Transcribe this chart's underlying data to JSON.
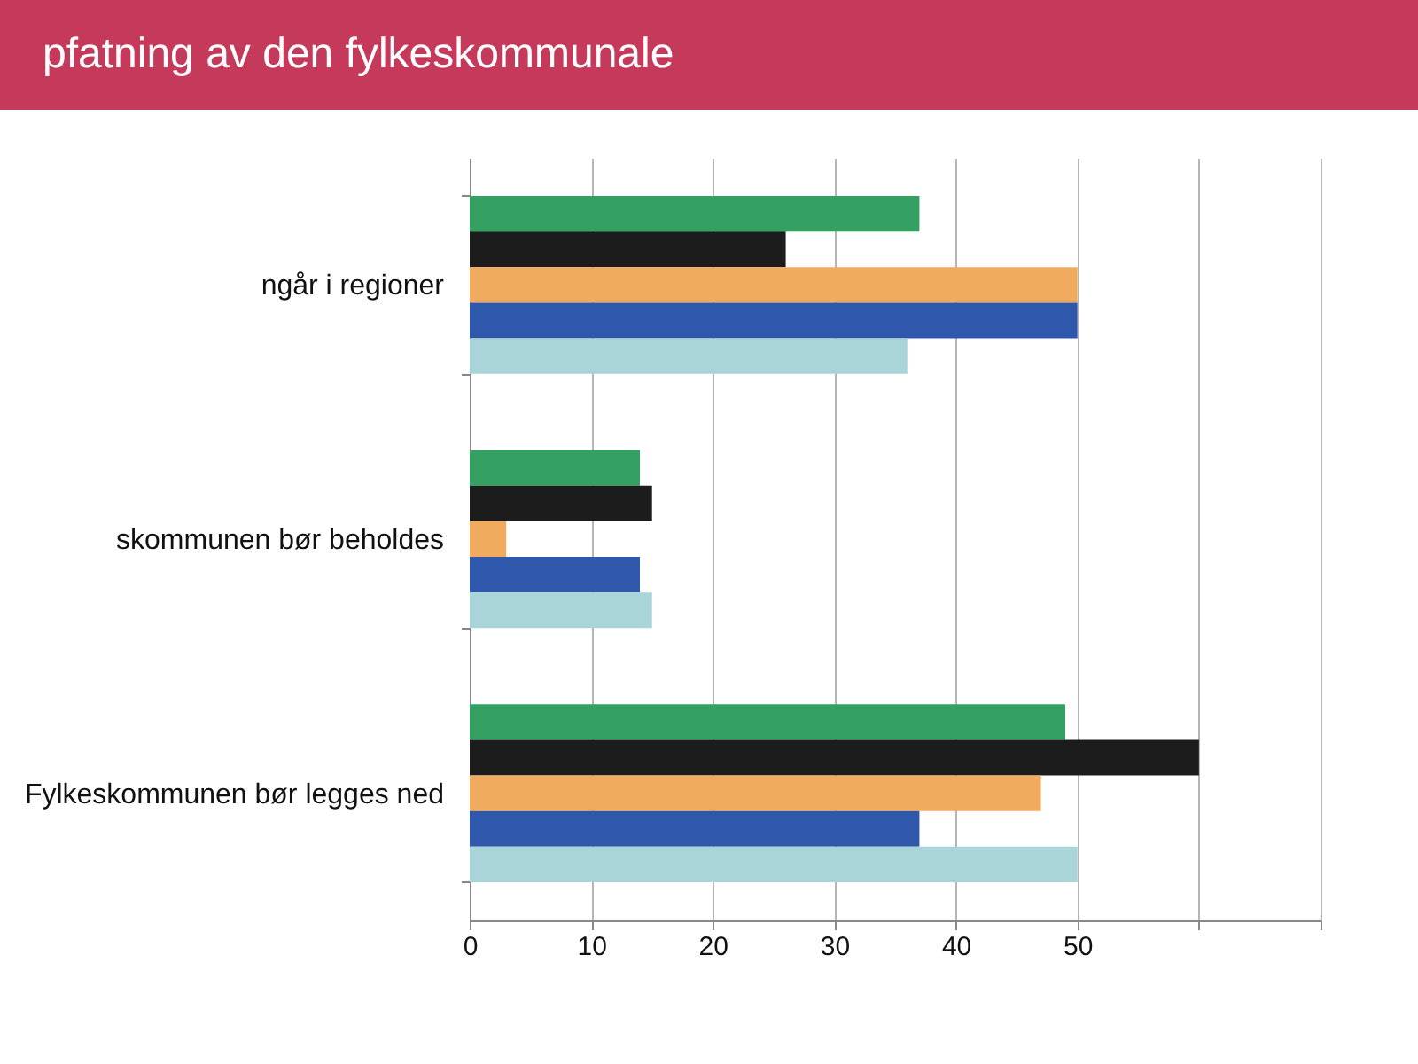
{
  "chart_data": {
    "type": "bar",
    "orientation": "horizontal",
    "title": "pfatning av den fylkeskommunale",
    "categories": [
      "ngår i regioner",
      "skommunen bør beholdes",
      "Fylkeskommunen bør legges ned"
    ],
    "series": [
      {
        "color": "#34a163",
        "values": [
          37,
          14,
          49
        ]
      },
      {
        "color": "#1c1c1c",
        "values": [
          26,
          15,
          60
        ]
      },
      {
        "color": "#f0ab5e",
        "values": [
          50,
          3,
          47
        ]
      },
      {
        "color": "#2f58ac",
        "values": [
          50,
          14,
          37
        ]
      },
      {
        "color": "#a9d5d9",
        "values": [
          36,
          15,
          50
        ]
      }
    ],
    "xlim": [
      0,
      70
    ],
    "xticks": [
      0,
      10,
      20,
      30,
      40,
      50,
      {
        "value": 60,
        "label": null
      },
      {
        "value": 70,
        "label": null
      }
    ],
    "grid": "x"
  }
}
